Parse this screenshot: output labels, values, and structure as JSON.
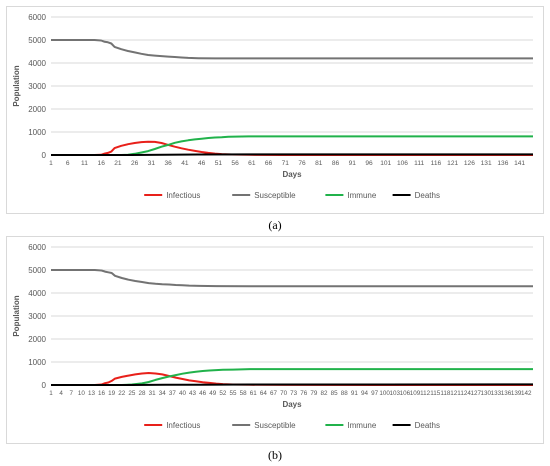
{
  "colors": {
    "infectious": "#e8201a",
    "susceptible": "#737373",
    "immune": "#21b24b",
    "deaths": "#000000",
    "grid": "#d9d9d9",
    "axis_text": "#595959"
  },
  "captions": {
    "a": "(a)",
    "b": "(b)"
  },
  "chart_data": [
    {
      "type": "line",
      "panel": "a",
      "xlabel": "Days",
      "ylabel": "Population",
      "ylim": [
        0,
        6000
      ],
      "yticks": [
        0,
        1000,
        2000,
        3000,
        4000,
        5000,
        6000
      ],
      "xlim": [
        1,
        145
      ],
      "xticks": [
        1,
        6,
        11,
        16,
        21,
        26,
        31,
        36,
        41,
        46,
        51,
        56,
        61,
        66,
        71,
        76,
        81,
        86,
        91,
        96,
        101,
        106,
        111,
        116,
        121,
        126,
        131,
        136,
        141
      ],
      "grid": "horizontal",
      "legend": "bottom",
      "series": [
        {
          "name": "Infectious",
          "color_key": "infectious",
          "points": [
            [
              1,
              0
            ],
            [
              14,
              0
            ],
            [
              16,
              10
            ],
            [
              17,
              60
            ],
            [
              18,
              90
            ],
            [
              19,
              150
            ],
            [
              20,
              300
            ],
            [
              22,
              400
            ],
            [
              24,
              470
            ],
            [
              26,
              520
            ],
            [
              28,
              560
            ],
            [
              30,
              580
            ],
            [
              32,
              570
            ],
            [
              34,
              520
            ],
            [
              36,
              440
            ],
            [
              38,
              360
            ],
            [
              40,
              290
            ],
            [
              42,
              230
            ],
            [
              44,
              180
            ],
            [
              46,
              130
            ],
            [
              48,
              90
            ],
            [
              50,
              60
            ],
            [
              52,
              40
            ],
            [
              55,
              20
            ],
            [
              60,
              8
            ],
            [
              70,
              2
            ],
            [
              145,
              0
            ]
          ]
        },
        {
          "name": "Susceptible",
          "color_key": "susceptible",
          "points": [
            [
              1,
              5000
            ],
            [
              14,
              5000
            ],
            [
              16,
              4980
            ],
            [
              17,
              4920
            ],
            [
              18,
              4900
            ],
            [
              19,
              4850
            ],
            [
              20,
              4700
            ],
            [
              22,
              4600
            ],
            [
              24,
              4520
            ],
            [
              26,
              4460
            ],
            [
              28,
              4400
            ],
            [
              30,
              4350
            ],
            [
              32,
              4320
            ],
            [
              34,
              4300
            ],
            [
              36,
              4280
            ],
            [
              38,
              4260
            ],
            [
              40,
              4240
            ],
            [
              42,
              4220
            ],
            [
              45,
              4210
            ],
            [
              50,
              4200
            ],
            [
              60,
              4200
            ],
            [
              145,
              4200
            ]
          ]
        },
        {
          "name": "Immune",
          "color_key": "immune",
          "points": [
            [
              1,
              0
            ],
            [
              22,
              0
            ],
            [
              24,
              10
            ],
            [
              26,
              50
            ],
            [
              28,
              110
            ],
            [
              30,
              170
            ],
            [
              32,
              260
            ],
            [
              34,
              360
            ],
            [
              36,
              440
            ],
            [
              38,
              530
            ],
            [
              40,
              590
            ],
            [
              42,
              640
            ],
            [
              44,
              680
            ],
            [
              46,
              710
            ],
            [
              48,
              740
            ],
            [
              50,
              760
            ],
            [
              52,
              770
            ],
            [
              54,
              790
            ],
            [
              56,
              800
            ],
            [
              60,
              810
            ],
            [
              70,
              810
            ],
            [
              145,
              810
            ]
          ]
        },
        {
          "name": "Deaths",
          "color_key": "deaths",
          "points": [
            [
              1,
              0
            ],
            [
              25,
              0
            ],
            [
              35,
              10
            ],
            [
              45,
              20
            ],
            [
              60,
              25
            ],
            [
              145,
              25
            ]
          ]
        }
      ]
    },
    {
      "type": "line",
      "panel": "b",
      "xlabel": "Days",
      "ylabel": "Population",
      "ylim": [
        0,
        6000
      ],
      "yticks": [
        0,
        1000,
        2000,
        3000,
        4000,
        5000,
        6000
      ],
      "xlim": [
        1,
        144
      ],
      "xticks": [
        1,
        4,
        7,
        10,
        13,
        16,
        19,
        22,
        25,
        28,
        31,
        34,
        37,
        40,
        43,
        46,
        49,
        52,
        55,
        58,
        61,
        64,
        67,
        70,
        73,
        76,
        79,
        82,
        85,
        88,
        91,
        94,
        97,
        100,
        103,
        106,
        109,
        112,
        115,
        118,
        121,
        124,
        127,
        130,
        133,
        136,
        139,
        142
      ],
      "grid": "horizontal",
      "legend": "bottom",
      "series": [
        {
          "name": "Infectious",
          "color_key": "infectious",
          "points": [
            [
              1,
              0
            ],
            [
              14,
              0
            ],
            [
              16,
              20
            ],
            [
              17,
              80
            ],
            [
              18,
              110
            ],
            [
              19,
              180
            ],
            [
              20,
              280
            ],
            [
              22,
              350
            ],
            [
              24,
              410
            ],
            [
              26,
              460
            ],
            [
              28,
              500
            ],
            [
              30,
              520
            ],
            [
              32,
              500
            ],
            [
              34,
              460
            ],
            [
              36,
              390
            ],
            [
              38,
              320
            ],
            [
              40,
              260
            ],
            [
              42,
              200
            ],
            [
              44,
              160
            ],
            [
              46,
              120
            ],
            [
              48,
              90
            ],
            [
              50,
              60
            ],
            [
              52,
              40
            ],
            [
              55,
              20
            ],
            [
              60,
              10
            ],
            [
              70,
              3
            ],
            [
              144,
              0
            ]
          ]
        },
        {
          "name": "Susceptible",
          "color_key": "susceptible",
          "points": [
            [
              1,
              5000
            ],
            [
              14,
              5000
            ],
            [
              16,
              4980
            ],
            [
              17,
              4930
            ],
            [
              18,
              4900
            ],
            [
              19,
              4870
            ],
            [
              20,
              4750
            ],
            [
              22,
              4650
            ],
            [
              24,
              4580
            ],
            [
              26,
              4520
            ],
            [
              28,
              4480
            ],
            [
              30,
              4430
            ],
            [
              32,
              4400
            ],
            [
              34,
              4380
            ],
            [
              36,
              4370
            ],
            [
              38,
              4350
            ],
            [
              40,
              4340
            ],
            [
              42,
              4320
            ],
            [
              45,
              4310
            ],
            [
              50,
              4300
            ],
            [
              60,
              4290
            ],
            [
              144,
              4290
            ]
          ]
        },
        {
          "name": "Immune",
          "color_key": "immune",
          "points": [
            [
              1,
              0
            ],
            [
              22,
              0
            ],
            [
              25,
              20
            ],
            [
              28,
              70
            ],
            [
              30,
              130
            ],
            [
              32,
              220
            ],
            [
              34,
              300
            ],
            [
              36,
              370
            ],
            [
              38,
              430
            ],
            [
              40,
              490
            ],
            [
              42,
              540
            ],
            [
              44,
              580
            ],
            [
              46,
              610
            ],
            [
              48,
              630
            ],
            [
              50,
              650
            ],
            [
              52,
              660
            ],
            [
              55,
              670
            ],
            [
              60,
              690
            ],
            [
              70,
              690
            ],
            [
              144,
              690
            ]
          ]
        },
        {
          "name": "Deaths",
          "color_key": "deaths",
          "points": [
            [
              1,
              0
            ],
            [
              25,
              0
            ],
            [
              35,
              8
            ],
            [
              45,
              15
            ],
            [
              60,
              20
            ],
            [
              144,
              25
            ]
          ]
        }
      ]
    }
  ]
}
